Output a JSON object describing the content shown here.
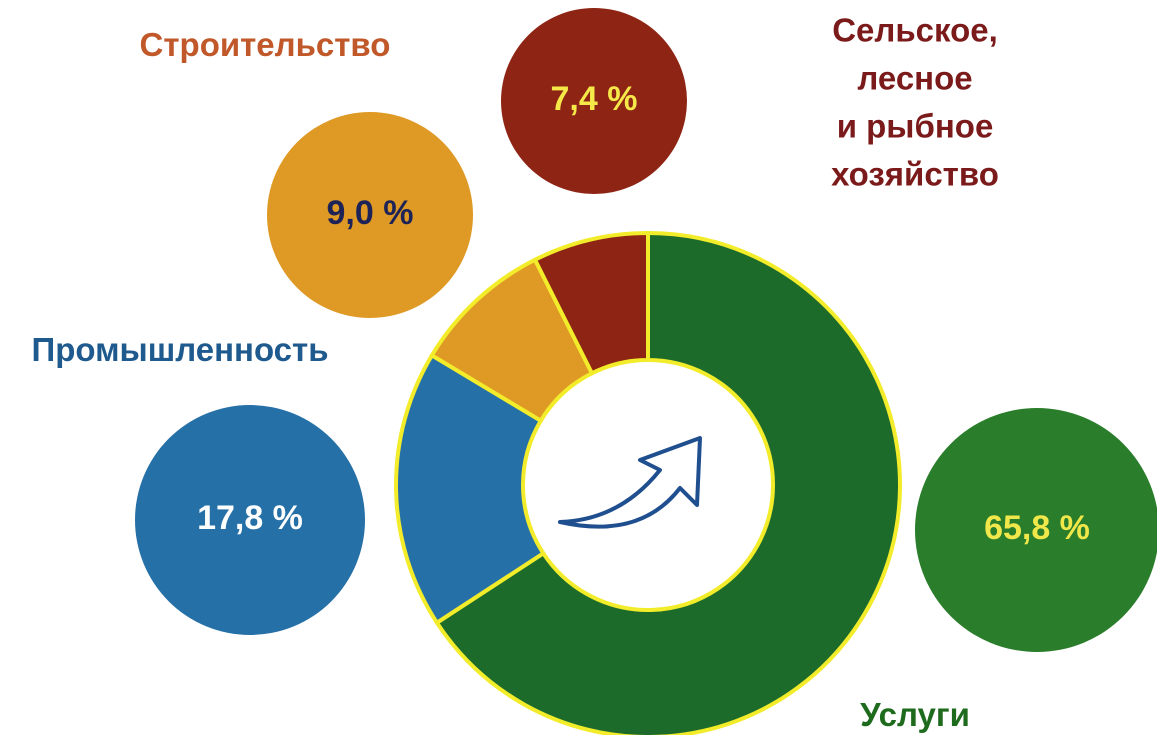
{
  "chart_data": {
    "type": "pie",
    "donut": true,
    "categories": [
      "Услуги",
      "Промышленность",
      "Строительство",
      "Сельское, лесное\nи рыбное хозяйство"
    ],
    "values": [
      65.8,
      17.8,
      9.0,
      7.4
    ],
    "value_labels": [
      "65,8 %",
      "17,8 %",
      "9,0 %",
      "7,4 %"
    ],
    "colors": [
      "#1c6b2b",
      "#2670a8",
      "#df9a26",
      "#8e2514"
    ]
  }
}
